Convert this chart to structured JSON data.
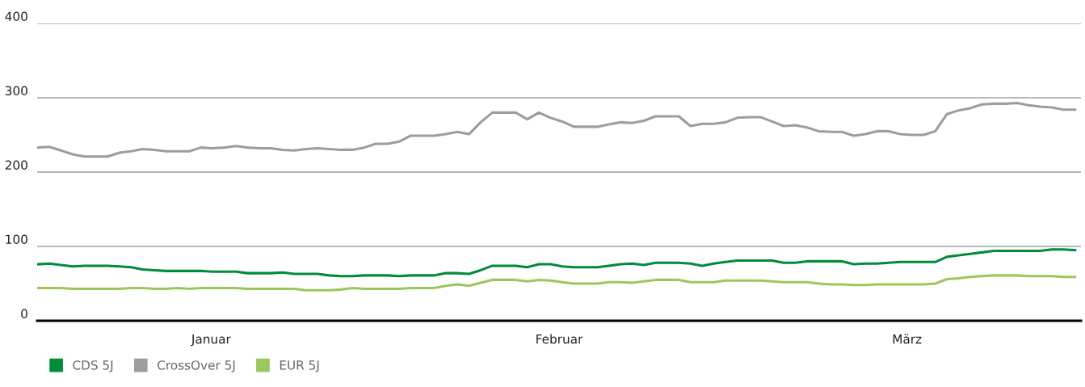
{
  "chart_data": {
    "type": "line",
    "categories": [
      null,
      null,
      null,
      null,
      null,
      null,
      null,
      null,
      null,
      null,
      null,
      null,
      null,
      null,
      null,
      null,
      null,
      null,
      null,
      null,
      null,
      null,
      null,
      null,
      null,
      null,
      null,
      null,
      null,
      null,
      null,
      null,
      null,
      null,
      null,
      null,
      null,
      null,
      null,
      null,
      null,
      null,
      null,
      null,
      null,
      null,
      null,
      null,
      null,
      null,
      null,
      null,
      null,
      null,
      null,
      null,
      null,
      null,
      null,
      null,
      null,
      null,
      null,
      null,
      null,
      null,
      null,
      null,
      null,
      null,
      null,
      null,
      null,
      null,
      null,
      null,
      null,
      null,
      null,
      null,
      null,
      null,
      null,
      null,
      null,
      null,
      null,
      null,
      null,
      null
    ],
    "ylim": [
      0,
      400
    ],
    "yticks": [
      0,
      100,
      200,
      300,
      400
    ],
    "grid": "y",
    "tick_labels": "y",
    "legend": "bottom left",
    "marker": "none",
    "line_style": "solid",
    "annotations": [
      "Januar",
      "Februar",
      "März"
    ],
    "series": [
      {
        "name": "CDS 5J",
        "color": "#008c3a",
        "values": [
          76,
          77,
          75,
          73,
          74,
          74,
          74,
          73,
          72,
          69,
          68,
          67,
          67,
          67,
          67,
          66,
          66,
          66,
          64,
          64,
          64,
          65,
          63,
          63,
          63,
          61,
          60,
          60,
          61,
          61,
          61,
          60,
          61,
          61,
          61,
          64,
          64,
          63,
          68,
          74,
          74,
          74,
          72,
          76,
          76,
          73,
          72,
          72,
          72,
          74,
          76,
          77,
          75,
          78,
          78,
          78,
          77,
          74,
          77,
          79,
          81,
          81,
          81,
          81,
          78,
          78,
          80,
          80,
          80,
          80,
          76,
          77,
          77,
          78,
          79,
          79,
          79,
          79,
          86,
          88,
          90,
          92,
          94,
          94,
          94,
          94,
          94,
          96,
          96,
          95
        ]
      },
      {
        "name": "CrossOver 5J",
        "color": "#9d9d9d",
        "values": [
          233,
          234,
          229,
          224,
          221,
          221,
          221,
          226,
          228,
          231,
          230,
          228,
          228,
          228,
          233,
          232,
          233,
          235,
          233,
          232,
          232,
          230,
          229,
          231,
          232,
          231,
          230,
          230,
          233,
          238,
          238,
          241,
          249,
          249,
          249,
          251,
          254,
          251,
          267,
          280,
          280,
          280,
          271,
          280,
          273,
          268,
          261,
          261,
          261,
          264,
          267,
          266,
          269,
          275,
          275,
          275,
          262,
          265,
          265,
          267,
          273,
          274,
          274,
          268,
          262,
          263,
          260,
          255,
          254,
          254,
          249,
          251,
          255,
          255,
          251,
          250,
          250,
          255,
          278,
          283,
          286,
          291,
          292,
          292,
          293,
          290,
          288,
          287,
          284,
          284
        ]
      },
      {
        "name": "EUR 5J",
        "color": "#9bc75d",
        "values": [
          44,
          44,
          44,
          43,
          43,
          43,
          43,
          43,
          44,
          44,
          43,
          43,
          44,
          43,
          44,
          44,
          44,
          44,
          43,
          43,
          43,
          43,
          43,
          41,
          41,
          41,
          42,
          44,
          43,
          43,
          43,
          43,
          44,
          44,
          44,
          47,
          49,
          47,
          51,
          55,
          55,
          55,
          53,
          55,
          54,
          52,
          50,
          50,
          50,
          52,
          52,
          51,
          53,
          55,
          55,
          55,
          52,
          52,
          52,
          54,
          54,
          54,
          54,
          53,
          52,
          52,
          52,
          50,
          49,
          49,
          48,
          48,
          49,
          49,
          49,
          49,
          49,
          50,
          56,
          57,
          59,
          60,
          61,
          61,
          61,
          60,
          60,
          60,
          59,
          59
        ]
      }
    ]
  }
}
